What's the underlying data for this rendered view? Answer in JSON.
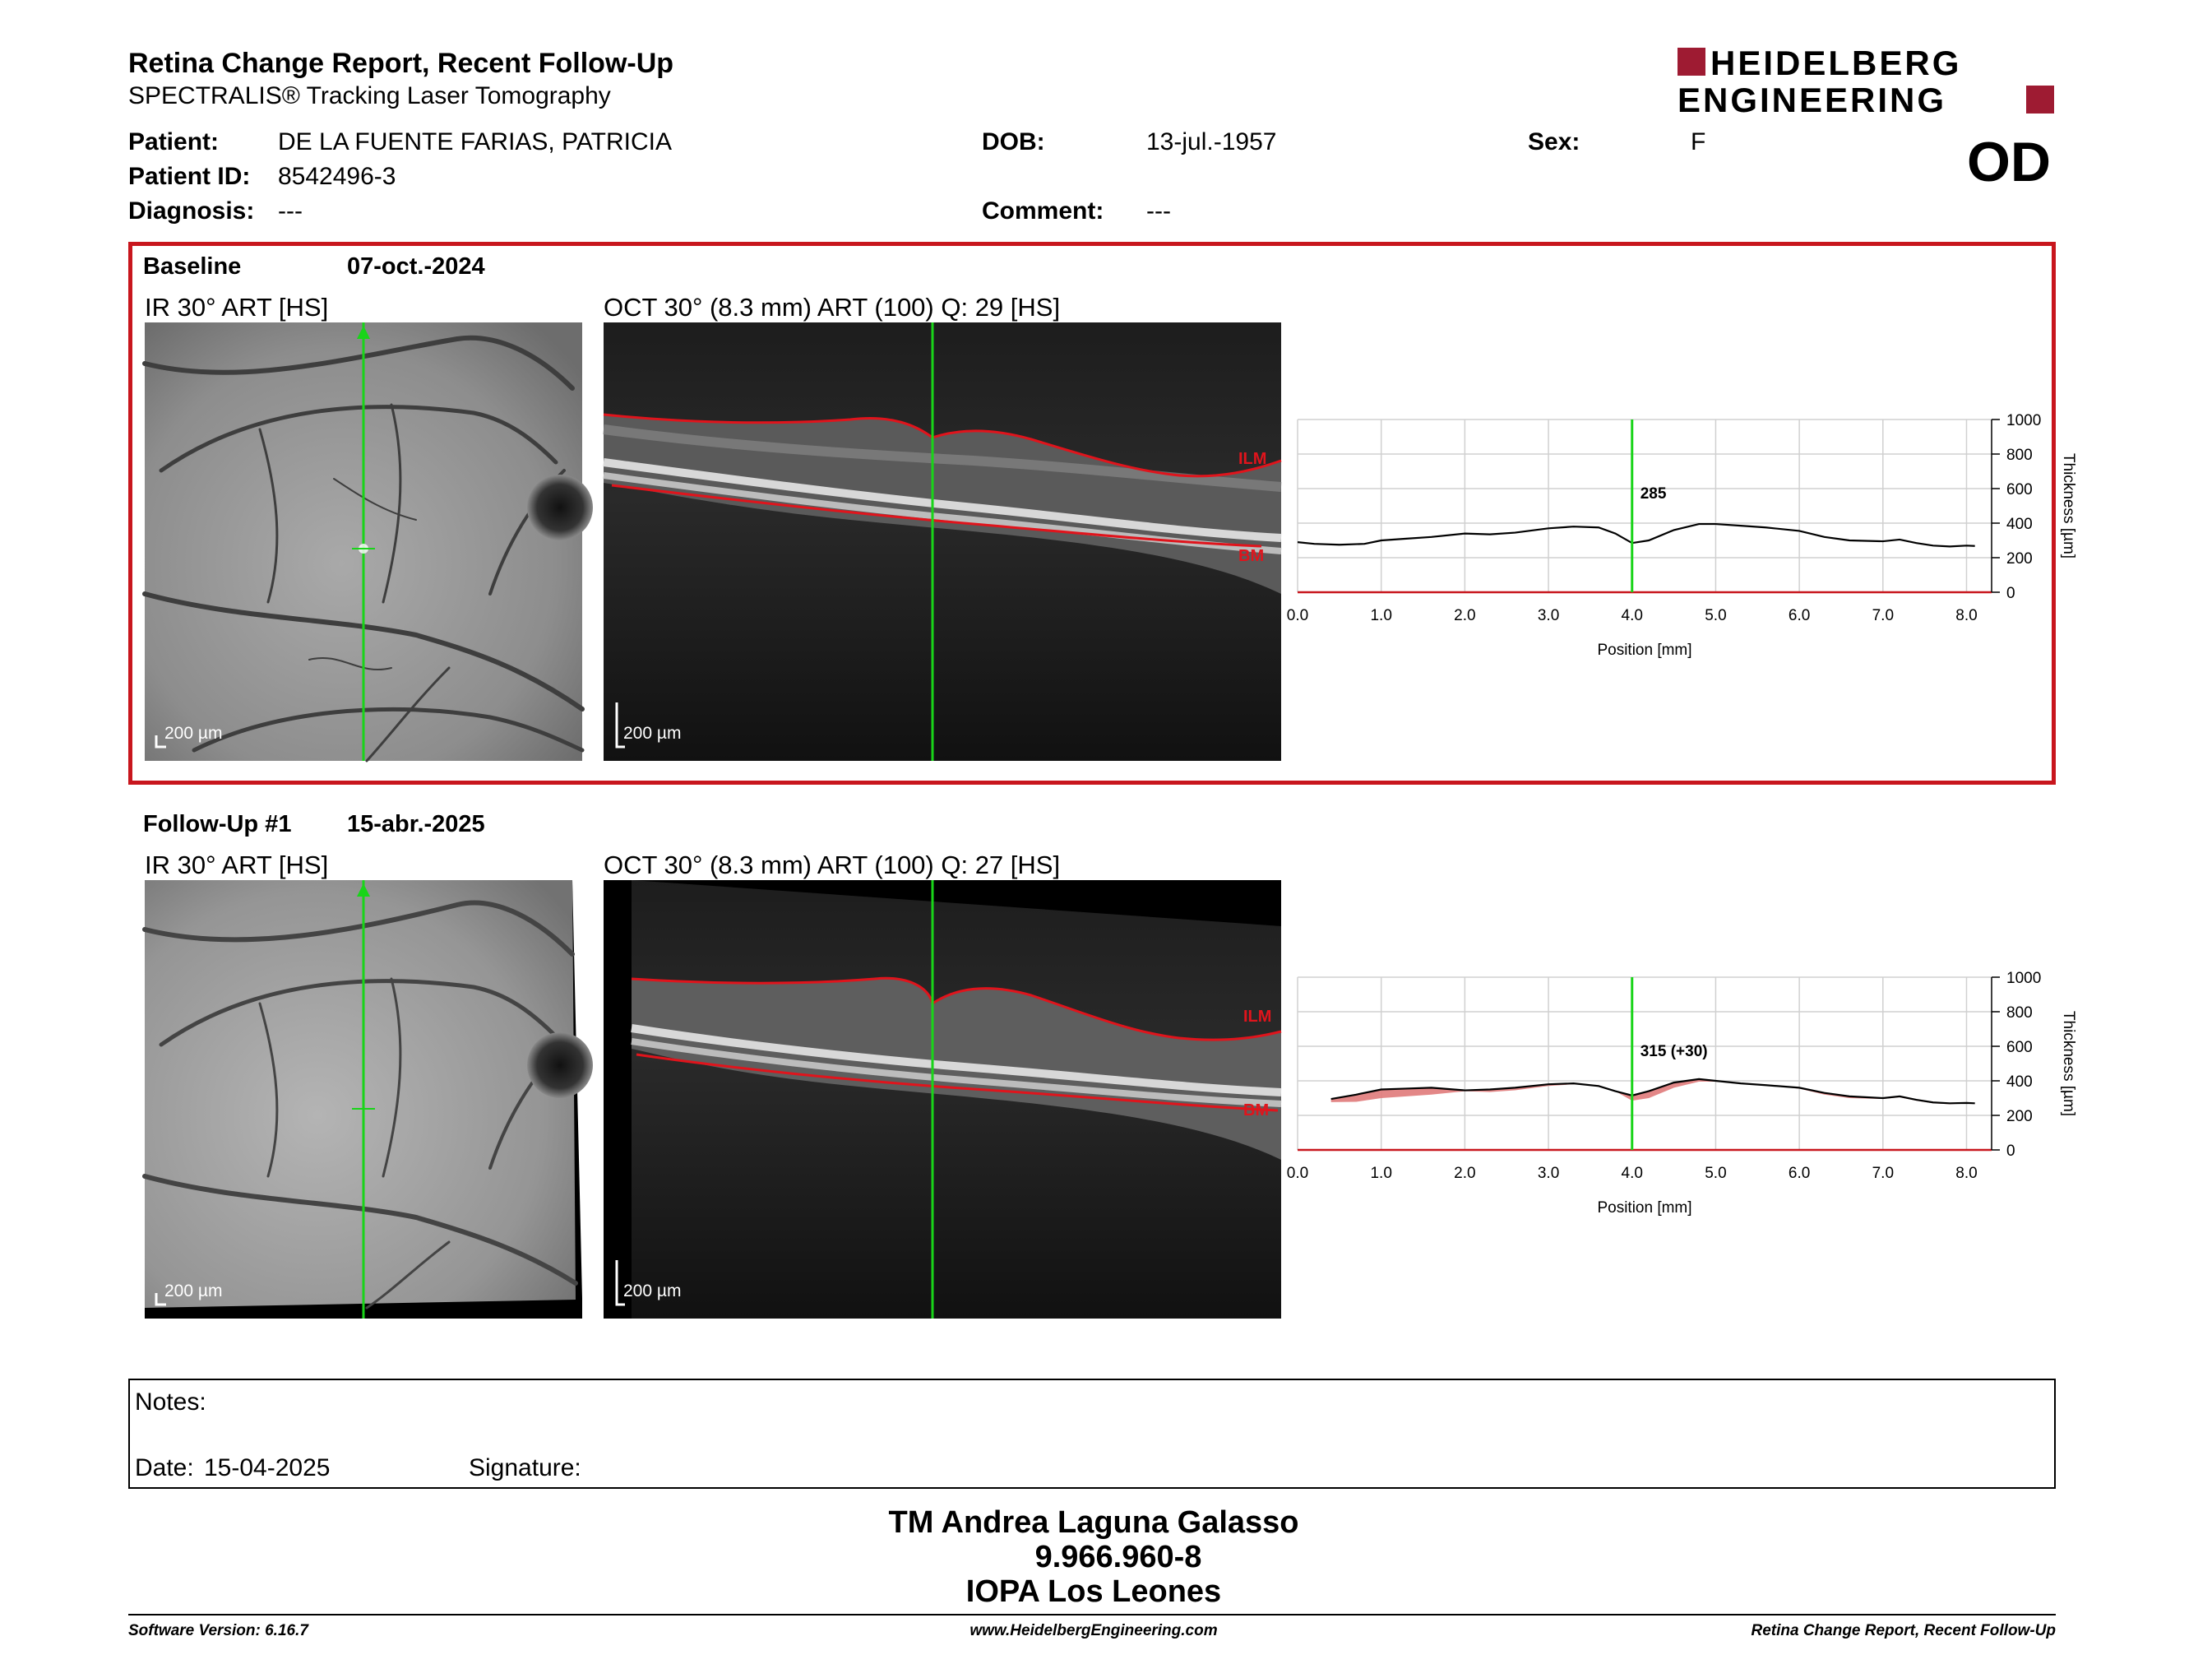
{
  "header": {
    "title": "Retina Change Report, Recent Follow-Up",
    "subtitle": "SPECTRALIS® Tracking Laser Tomography",
    "brand_line1": "HEIDELBERG",
    "brand_line2": "ENGINEERING",
    "brand_color": "#9e1b32"
  },
  "patient": {
    "patient_label": "Patient:",
    "patient_value": "DE LA FUENTE FARIAS, PATRICIA",
    "id_label": "Patient ID:",
    "id_value": "8542496-3",
    "diagnosis_label": "Diagnosis:",
    "diagnosis_value": "---",
    "dob_label": "DOB:",
    "dob_value": "13-jul.-1957",
    "comment_label": "Comment:",
    "comment_value": "---",
    "sex_label": "Sex:",
    "sex_value": "F",
    "eye": "OD"
  },
  "baseline": {
    "label": "Baseline",
    "date": "07-oct.-2024",
    "ir_title": "IR 30° ART [HS]",
    "oct_title": "OCT 30° (8.3 mm) ART (100) Q: 29 [HS]",
    "scale_ir": "200 µm",
    "scale_oct": "200 µm",
    "ilm": "ILM",
    "bm": "BM",
    "marker_value": "285",
    "border_color": "#c8161d"
  },
  "followup": {
    "label": "Follow-Up #1",
    "date": "15-abr.-2025",
    "ir_title": "IR 30° ART [HS]",
    "oct_title": "OCT 30° (8.3 mm) ART (100) Q: 27 [HS]",
    "scale_ir": "200 µm",
    "scale_oct": "200 µm",
    "ilm": "ILM",
    "bm": "BM",
    "marker_value": "315 (+30)"
  },
  "chart_data": [
    {
      "type": "line",
      "name": "baseline-thickness",
      "xlabel": "Position [mm]",
      "ylabel": "Thickness [µm]",
      "xlim": [
        0,
        8.3
      ],
      "ylim": [
        0,
        1000
      ],
      "x_ticks": [
        "0.0",
        "1.0",
        "2.0",
        "3.0",
        "4.0",
        "5.0",
        "6.0",
        "7.0",
        "8.0"
      ],
      "y_ticks": [
        "0",
        "200",
        "400",
        "600",
        "800",
        "1000"
      ],
      "grid": true,
      "marker_x": 4.0,
      "x": [
        0.0,
        0.2,
        0.5,
        0.8,
        1.0,
        1.3,
        1.6,
        2.0,
        2.3,
        2.6,
        3.0,
        3.3,
        3.6,
        3.8,
        4.0,
        4.2,
        4.5,
        4.8,
        5.0,
        5.3,
        5.6,
        6.0,
        6.3,
        6.6,
        7.0,
        7.2,
        7.4,
        7.6,
        7.8,
        8.0,
        8.1
      ],
      "y": [
        290,
        280,
        275,
        280,
        300,
        310,
        320,
        340,
        335,
        345,
        370,
        380,
        375,
        340,
        285,
        300,
        360,
        395,
        395,
        385,
        375,
        355,
        320,
        300,
        295,
        305,
        285,
        270,
        265,
        270,
        268
      ]
    },
    {
      "type": "area",
      "name": "followup-thickness",
      "xlabel": "Position [mm]",
      "ylabel": "Thickness [µm]",
      "xlim": [
        0,
        8.3
      ],
      "ylim": [
        0,
        1000
      ],
      "x_ticks": [
        "0.0",
        "1.0",
        "2.0",
        "3.0",
        "4.0",
        "5.0",
        "6.0",
        "7.0",
        "8.0"
      ],
      "y_ticks": [
        "0",
        "200",
        "400",
        "600",
        "800",
        "1000"
      ],
      "grid": true,
      "marker_x": 4.0,
      "difference_color": "#e07a7a",
      "x": [
        0.4,
        0.7,
        1.0,
        1.3,
        1.6,
        2.0,
        2.3,
        2.6,
        3.0,
        3.3,
        3.6,
        3.8,
        4.0,
        4.2,
        4.5,
        4.8,
        5.0,
        5.3,
        5.6,
        6.0,
        6.3,
        6.6,
        7.0,
        7.2,
        7.4,
        7.6,
        7.8,
        8.0,
        8.1
      ],
      "y": [
        295,
        320,
        350,
        355,
        360,
        345,
        350,
        360,
        380,
        385,
        370,
        340,
        315,
        340,
        390,
        410,
        400,
        385,
        375,
        360,
        330,
        310,
        300,
        310,
        290,
        275,
        270,
        272,
        270
      ]
    }
  ],
  "notes": {
    "notes_label": "Notes:",
    "date_label": "Date:",
    "date_value": "15-04-2025",
    "signature_label": "Signature:"
  },
  "signature_block": {
    "line1": "TM Andrea Laguna Galasso",
    "line2": "9.966.960-8",
    "line3": "IOPA Los Leones"
  },
  "footer": {
    "software": "Software Version: 6.16.7",
    "website": "www.HeidelbergEngineering.com",
    "report": "Retina Change Report, Recent Follow-Up"
  }
}
